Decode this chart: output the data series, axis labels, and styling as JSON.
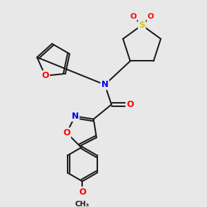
{
  "bg_color": "#e8e8e8",
  "bond_color": "#1a1a1a",
  "bond_width": 1.5,
  "atom_colors": {
    "N": "#0000ee",
    "O": "#ff0000",
    "S": "#cccc00",
    "C": "#1a1a1a"
  }
}
